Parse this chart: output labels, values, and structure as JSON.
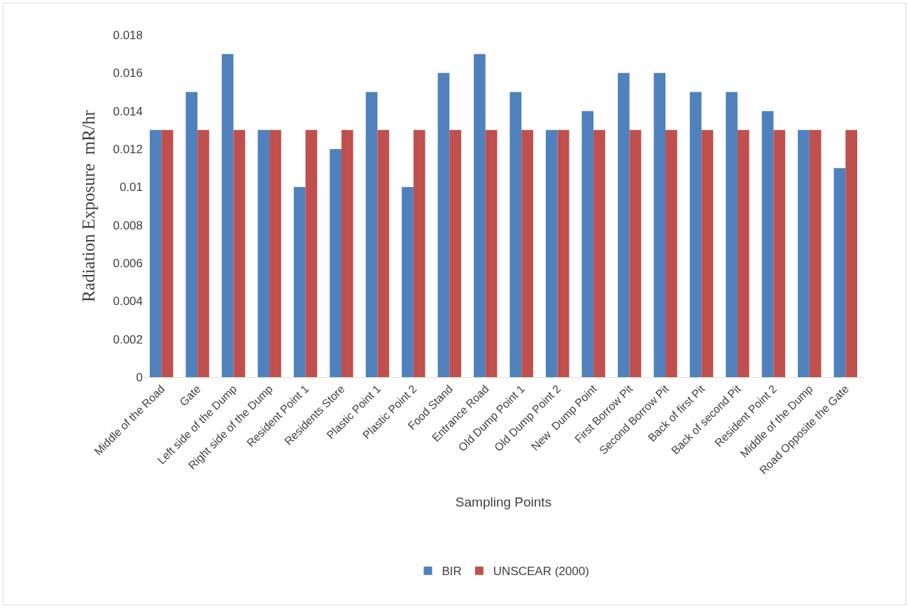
{
  "chart_data": {
    "type": "bar",
    "xlabel": "Sampling Points",
    "ylabel": "Radiation Exposure  mR/hr",
    "categories": [
      "Middle of the Road",
      "Gate",
      "Left side of the Dump",
      "Right side of the Dump",
      "Resident Point 1",
      "Residents Store",
      "Plastic Point 1",
      "Plastic Point 2",
      "Food Stand",
      "Entrance Road",
      "Old Dump Point 1",
      "Old Dump Point 2",
      "New  Dump Point",
      "First Borrow Pit",
      "Second Borrow Pit",
      "Back of first Pit",
      "Back of second Pit",
      "Resident Point 2",
      "Middle of the Dump",
      "Road Opposite the Gate"
    ],
    "series": [
      {
        "name": "BIR",
        "color": "#4f81bd",
        "values": [
          0.013,
          0.015,
          0.017,
          0.013,
          0.01,
          0.012,
          0.015,
          0.01,
          0.016,
          0.017,
          0.015,
          0.013,
          0.014,
          0.016,
          0.016,
          0.015,
          0.015,
          0.014,
          0.013,
          0.011
        ]
      },
      {
        "name": "UNSCEAR (2000)",
        "color": "#c0504d",
        "values": [
          0.013,
          0.013,
          0.013,
          0.013,
          0.013,
          0.013,
          0.013,
          0.013,
          0.013,
          0.013,
          0.013,
          0.013,
          0.013,
          0.013,
          0.013,
          0.013,
          0.013,
          0.013,
          0.013,
          0.013
        ]
      }
    ],
    "ylim": [
      0,
      0.018
    ],
    "yticks": [
      0,
      0.002,
      0.004,
      0.006,
      0.008,
      0.01,
      0.012,
      0.014,
      0.016,
      0.018
    ],
    "grid": false,
    "legend": "bottom"
  }
}
